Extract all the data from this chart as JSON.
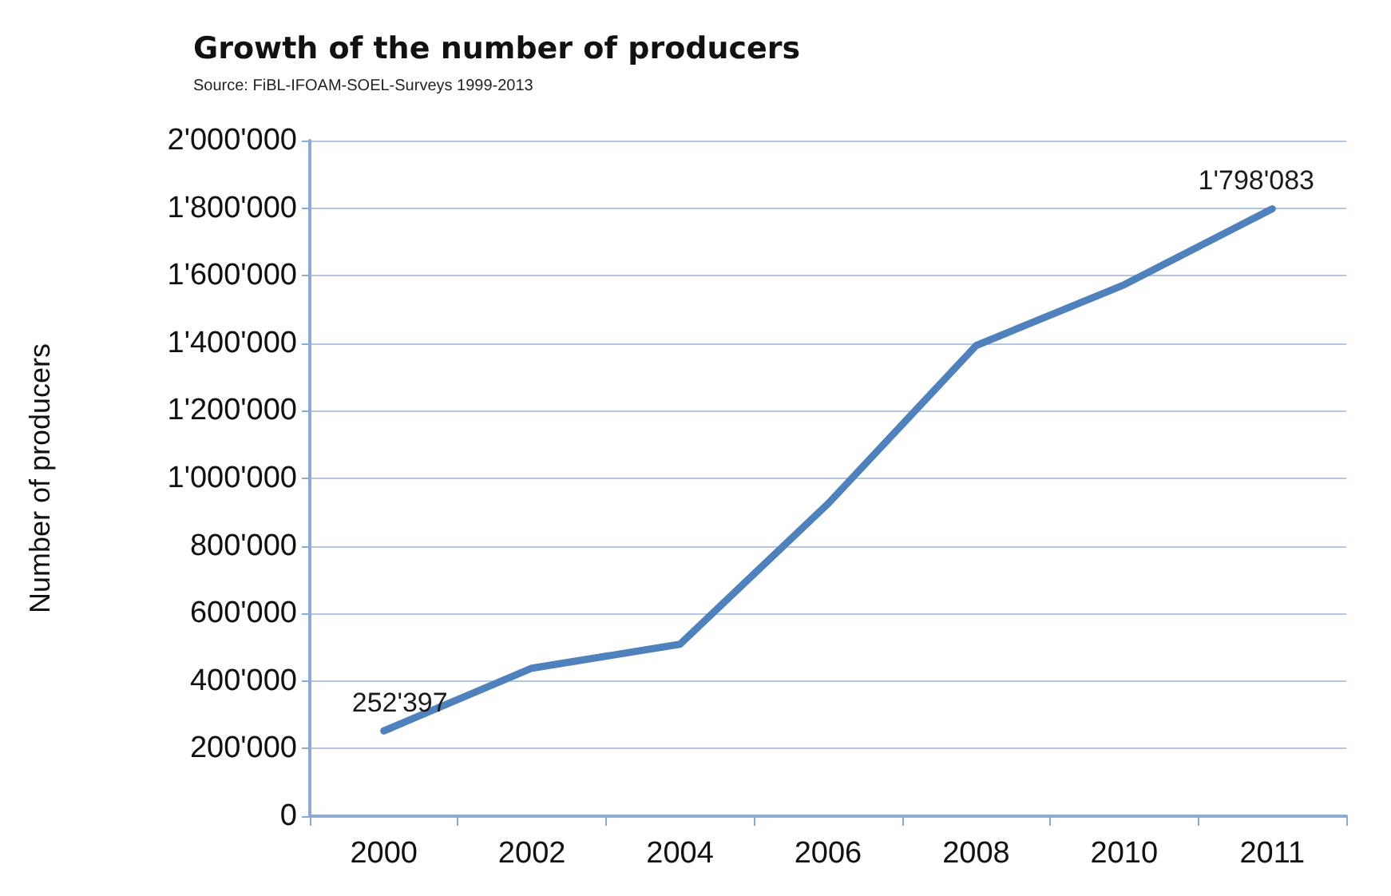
{
  "chart_data": {
    "type": "line",
    "title": "Growth of the number of producers",
    "subtitle": "Source: FiBL-IFOAM-SOEL-Surveys 1999-2013",
    "ylabel": "Number of producers",
    "categories": [
      "2000",
      "2002",
      "2004",
      "2006",
      "2008",
      "2010",
      "2011"
    ],
    "series": [
      {
        "color": "#4f81bd",
        "values": [
          252397,
          438000,
          509000,
          925000,
          1393000,
          1573000,
          1798083
        ],
        "value_labels": [
          "252'397",
          null,
          null,
          null,
          null,
          null,
          "1'798'083"
        ]
      }
    ],
    "ylim": [
      0,
      2000000
    ],
    "yticks": [
      0,
      {
        "value": 200000,
        "label": "200'000"
      },
      {
        "value": 400000,
        "label": "400'000"
      },
      {
        "value": 600000,
        "label": "600'000"
      },
      {
        "value": 800000,
        "label": "800'000"
      },
      {
        "value": 1000000,
        "label": "1'000'000"
      },
      {
        "value": 1200000,
        "label": "1'200'000"
      },
      {
        "value": 1400000,
        "label": "1'400'000"
      },
      {
        "value": 1600000,
        "label": "1'600'000"
      },
      {
        "value": 1800000,
        "label": "1'800'000"
      },
      {
        "value": 2000000,
        "label": "2'000'000"
      }
    ],
    "grid": "y",
    "marker": "none",
    "line_style": "solid"
  }
}
